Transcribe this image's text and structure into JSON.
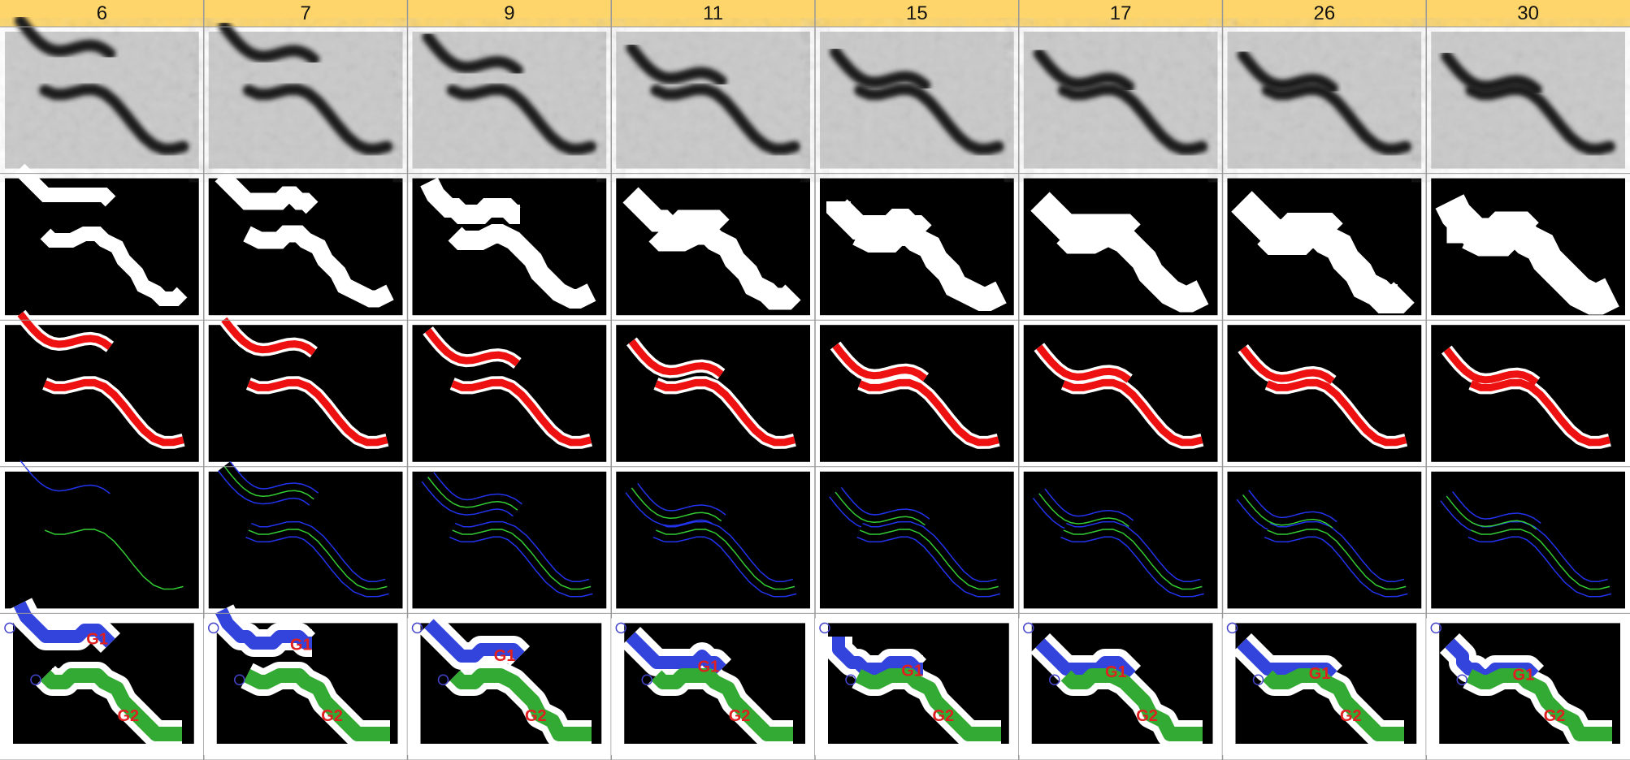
{
  "header": {
    "columns": [
      "6",
      "7",
      "9",
      "11",
      "15",
      "17",
      "26",
      "30"
    ]
  },
  "labels": {
    "g1": "G1",
    "g2": "G2"
  }
}
